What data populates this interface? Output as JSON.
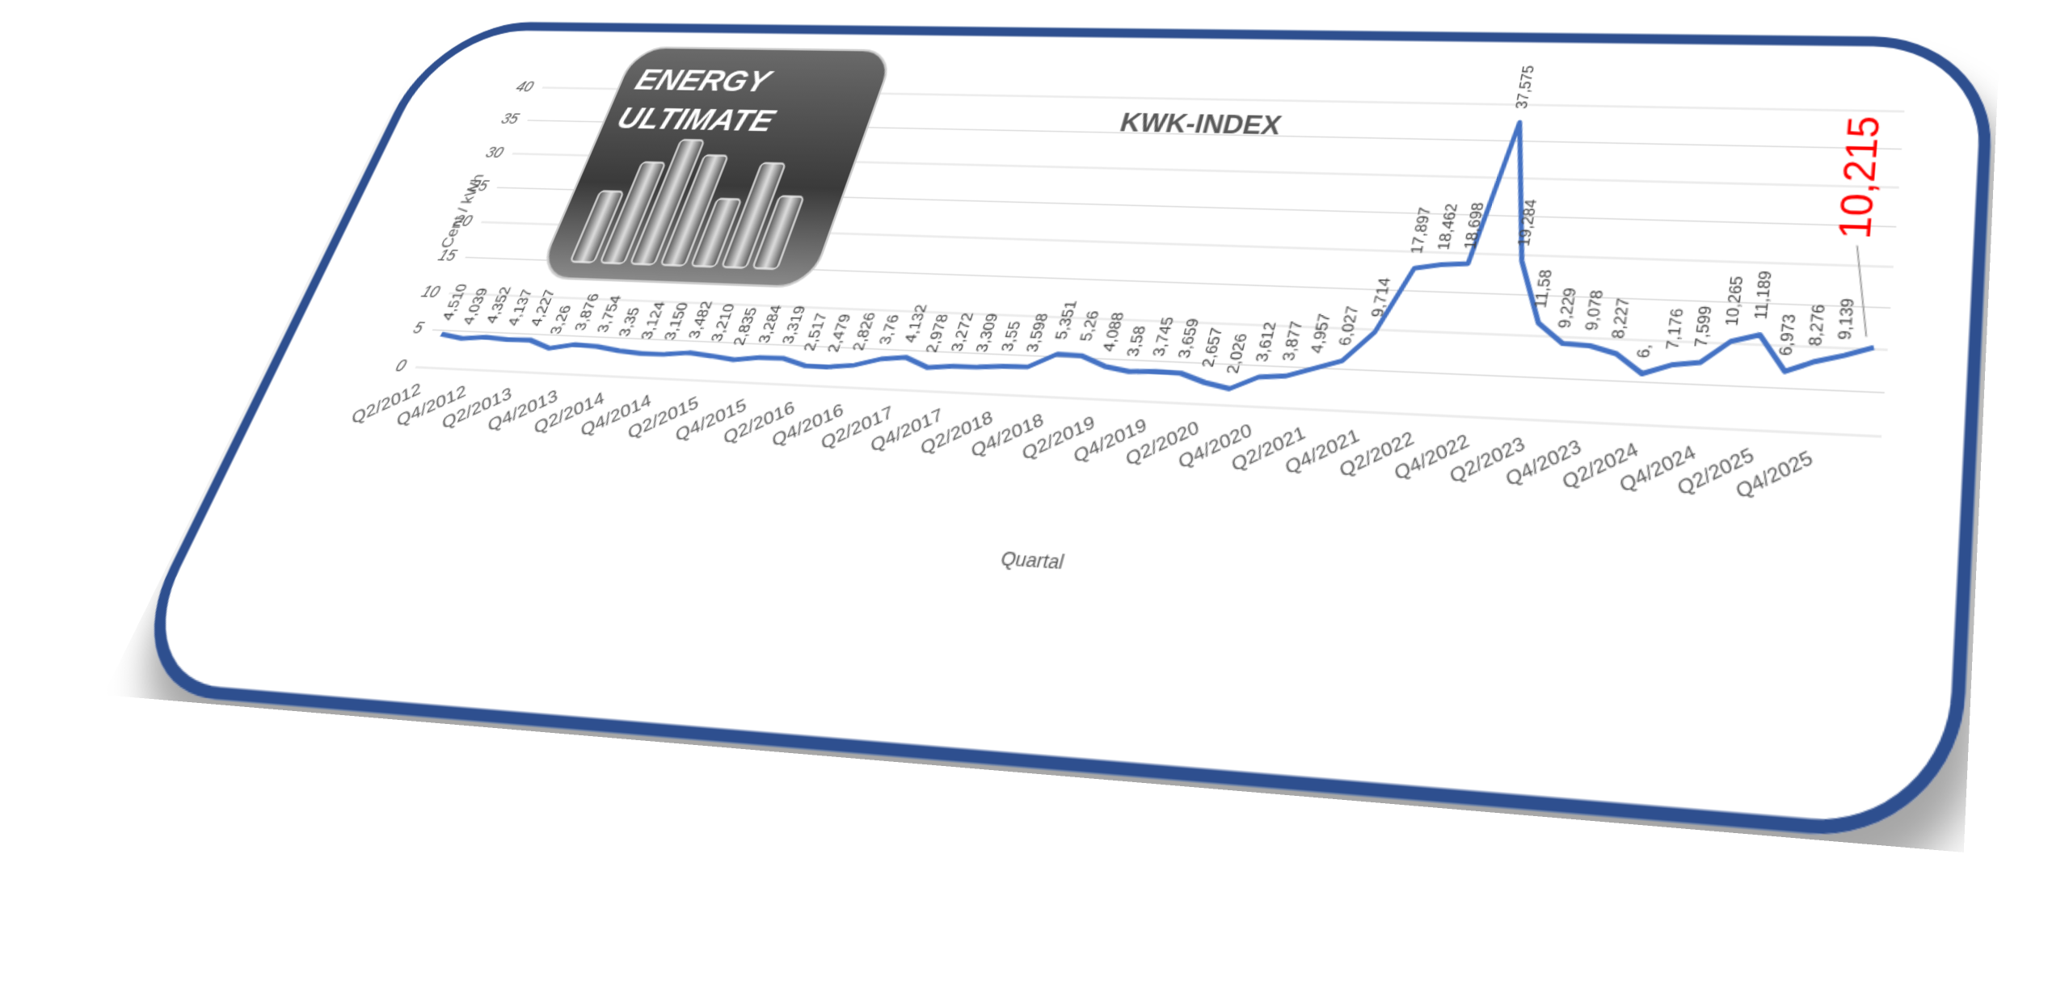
{
  "logo": {
    "lines": [
      "ENERGY",
      "ULTIMATE"
    ]
  },
  "chart_data": {
    "type": "line",
    "title": "KWK-INDEX",
    "y_label": "Cent / kWh",
    "x_label": "Quartal",
    "categories": [
      "Q2/2012",
      null,
      "Q4/2012",
      null,
      "Q2/2013",
      null,
      "Q4/2013",
      null,
      "Q2/2014",
      null,
      "Q4/2014",
      null,
      "Q2/2015",
      null,
      "Q4/2015",
      null,
      "Q2/2016",
      null,
      "Q4/2016",
      null,
      "Q2/2017",
      null,
      "Q4/2017",
      null,
      "Q2/2018",
      null,
      "Q4/2018",
      null,
      "Q2/2019",
      null,
      "Q4/2019",
      null,
      "Q2/2020",
      null,
      "Q4/2020",
      null,
      "Q2/2021",
      null,
      "Q4/2021",
      null,
      "Q2/2022",
      null,
      "Q4/2022",
      null,
      "Q2/2023",
      null,
      "Q4/2023",
      null,
      "Q2/2024",
      null,
      "Q4/2024",
      null,
      "Q2/2025",
      null,
      "Q4/2025",
      null,
      null
    ],
    "series": [
      {
        "name": "KWK-Index",
        "color": "#4472c4",
        "values": [
          4.51,
          4.039,
          4.352,
          4.137,
          4.227,
          3.26,
          3.876,
          3.754,
          3.35,
          3.124,
          3.15,
          3.482,
          3.21,
          2.835,
          3.284,
          3.319,
          2.517,
          2.479,
          2.826,
          3.76,
          4.132,
          2.978,
          3.272,
          3.309,
          3.55,
          3.598,
          5.351,
          5.26,
          4.088,
          3.58,
          3.745,
          3.659,
          2.657,
          2.026,
          3.612,
          3.877,
          4.957,
          6.027,
          9.714,
          17.897,
          18.462,
          18.698,
          37.575,
          19.284,
          11.58,
          9.229,
          9.078,
          8.227,
          6,
          7.176,
          7.599,
          10.265,
          11.189,
          6.973,
          8.276,
          9.139,
          10.215
        ],
        "value_labels": [
          "4,510",
          "4,039",
          "4,352",
          "4,137",
          "4,227",
          "3,26",
          "3,876",
          "3,754",
          "3,35",
          "3,124",
          "3,150",
          "3,482",
          "3,210",
          "2,835",
          "3,284",
          "3,319",
          "2,517",
          "2,479",
          "2,826",
          "3,76",
          "4,132",
          "2,978",
          "3,272",
          "3,309",
          "3,55",
          "3,598",
          "5,351",
          "5,26",
          "4,088",
          "3,58",
          "3,745",
          "3,659",
          "2,657",
          "2,026",
          "3,612",
          "3,877",
          "4,957",
          "6,027",
          "9,714",
          "17,897",
          "18,462",
          "18,698",
          "37,575",
          "19,284",
          "11,58",
          "9,229",
          "9,078",
          "8,227",
          "6,",
          "7,176",
          "7,599",
          "10,265",
          "11,189",
          "6,973",
          "8,276",
          "9,139",
          "10,215"
        ]
      }
    ],
    "highlight_color": "#ff0000",
    "ylim": [
      0,
      40
    ],
    "yticks": [
      0,
      5,
      10,
      15,
      20,
      25,
      30,
      35,
      40
    ],
    "grid": true
  }
}
